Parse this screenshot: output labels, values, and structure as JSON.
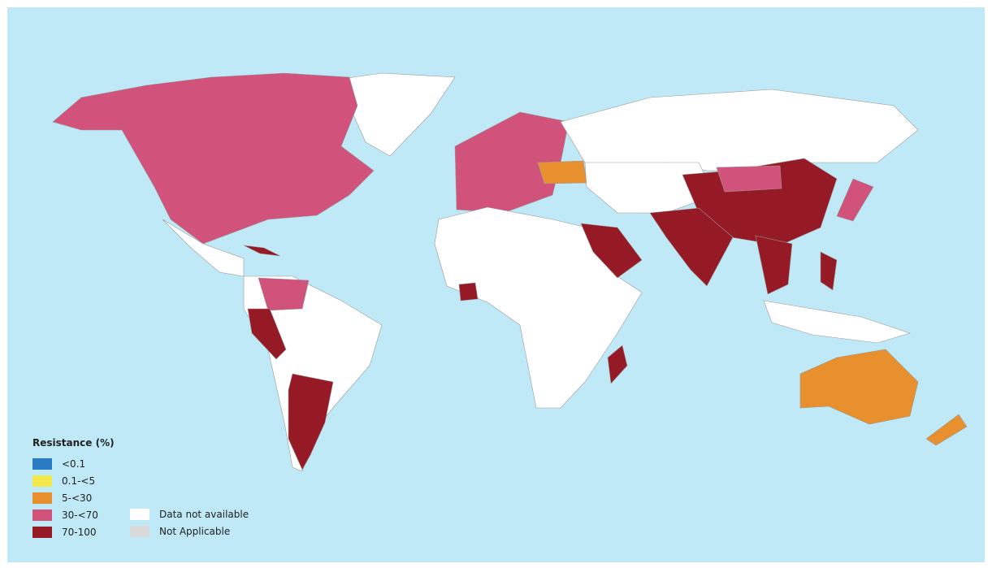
{
  "legend": {
    "title": "Resistance (%)",
    "categories": [
      {
        "label": "<0.1",
        "color": "#2b7bc4"
      },
      {
        "label": "0.1-<5",
        "color": "#f2e84a"
      },
      {
        "label": "5-<30",
        "color": "#e8902e"
      },
      {
        "label": "30-<70",
        "color": "#d1527a"
      },
      {
        "label": "70-100",
        "color": "#961a26"
      }
    ],
    "extra": [
      {
        "label": "Data not available",
        "color": "#ffffff"
      },
      {
        "label": "Not Applicable",
        "color": "#d9d9d9"
      }
    ]
  },
  "colors": {
    "ocean": "#bfe9f6"
  },
  "regions": {
    "canada_usa": "30-<70",
    "europe": "30-<70",
    "ukraine": "5-<30",
    "china": "70-100",
    "india": "70-100",
    "saudi_arabia": "70-100",
    "southeast_asia": "70-100",
    "philippines": "70-100",
    "japan": "30-<70",
    "mongolia": "30-<70",
    "australia": "5-<30",
    "new_zealand": "5-<30",
    "peru": "70-100",
    "argentina": "70-100",
    "colombia": "30-<70",
    "madagascar": "70-100",
    "cuba": "70-100"
  }
}
